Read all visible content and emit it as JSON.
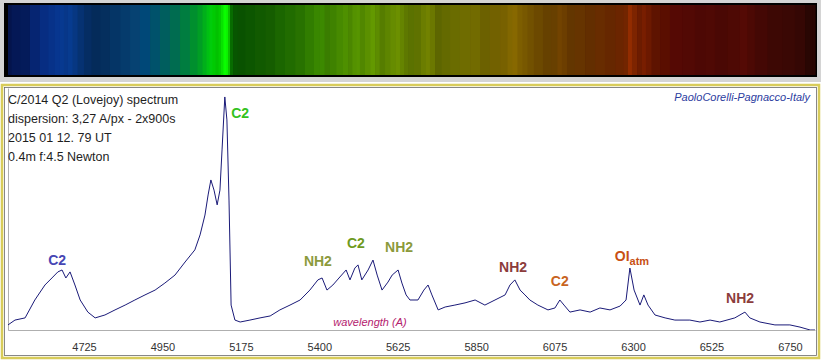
{
  "chart_data": {
    "type": "line",
    "title": "C/2014 Q2 (Lovejoy) spectrum",
    "subtitle": [
      "dispersion: 3,27 A/px - 2x900s",
      "2015 01 12. 79 UT",
      "0.4m f:4.5 Newton"
    ],
    "credit": "PaoloCorelli-Pagnacco-Italy",
    "xlabel": "wavelength (A)",
    "x": [
      4507,
      4527,
      4556,
      4584,
      4613,
      4633,
      4650,
      4662,
      4673,
      4685,
      4699,
      4714,
      4736,
      4757,
      4785,
      4814,
      4843,
      4871,
      4900,
      4929,
      4957,
      4986,
      5015,
      5043,
      5058,
      5072,
      5081,
      5089,
      5098,
      5107,
      5115,
      5121,
      5127,
      5129,
      5135,
      5141,
      5147,
      5158,
      5173,
      5201,
      5230,
      5259,
      5287,
      5316,
      5345,
      5373,
      5396,
      5408,
      5422,
      5439,
      5459,
      5477,
      5488,
      5502,
      5511,
      5522,
      5540,
      5554,
      5566,
      5580,
      5597,
      5609,
      5626,
      5637,
      5649,
      5660,
      5683,
      5700,
      5712,
      5723,
      5741,
      5761,
      5789,
      5818,
      5847,
      5875,
      5904,
      5933,
      5947,
      5961,
      5976,
      5990,
      6004,
      6027,
      6056,
      6076,
      6090,
      6102,
      6119,
      6148,
      6177,
      6205,
      6234,
      6263,
      6280,
      6291,
      6303,
      6320,
      6331,
      6343,
      6363,
      6392,
      6420,
      6463,
      6492,
      6521,
      6549,
      6592,
      6621,
      6635,
      6664,
      6707,
      6750,
      6779,
      6808,
      6822
    ],
    "values": [
      2.1,
      4.1,
      5.0,
      12.4,
      18.6,
      21.5,
      24.0,
      24.8,
      21.5,
      24.0,
      18.6,
      12.4,
      7.4,
      5.0,
      6.2,
      8.3,
      10.3,
      12.4,
      14.5,
      16.5,
      19.4,
      22.7,
      28.1,
      33.1,
      39.3,
      47.5,
      55.8,
      62.0,
      57.8,
      51.7,
      57.8,
      74.4,
      90.9,
      96.3,
      86.8,
      53.7,
      10.3,
      4.1,
      3.3,
      4.1,
      5.0,
      5.8,
      8.3,
      10.3,
      12.4,
      16.5,
      20.7,
      21.5,
      16.5,
      18.6,
      21.9,
      24.8,
      20.7,
      25.6,
      26.9,
      20.7,
      24.8,
      28.9,
      22.7,
      16.5,
      19.8,
      22.7,
      24.8,
      19.4,
      14.5,
      12.4,
      12.4,
      16.5,
      18.6,
      14.5,
      8.3,
      9.5,
      10.3,
      11.2,
      12.4,
      10.3,
      12.4,
      14.5,
      18.6,
      20.7,
      16.5,
      14.5,
      12.4,
      10.3,
      8.3,
      9.1,
      12.4,
      10.3,
      7.4,
      8.3,
      7.4,
      9.1,
      8.3,
      9.9,
      12.4,
      25.6,
      16.5,
      10.3,
      14.5,
      10.3,
      6.2,
      5.0,
      4.1,
      4.1,
      3.3,
      4.1,
      3.3,
      5.0,
      7.4,
      5.0,
      3.3,
      2.1,
      2.1,
      1.2,
      0,
      0
    ],
    "color": "#1a1a78",
    "xlim": [
      4507,
      6822
    ],
    "xticks": [
      4725,
      4950,
      5175,
      5400,
      5625,
      5850,
      6075,
      6300,
      6525,
      6750
    ],
    "ylim": [
      0,
      100
    ],
    "grid": false,
    "tick_labels": "x",
    "annotations": [
      {
        "text": "C2",
        "x": 4648,
        "y": 26.9,
        "color": "#4646b4"
      },
      {
        "text": "C2",
        "x": 5173,
        "y": 87.6,
        "color": "#33c21e"
      },
      {
        "text": "NH2",
        "x": 5396,
        "y": 26.4,
        "color": "#8c9a3c"
      },
      {
        "text": "C2",
        "x": 5505,
        "y": 33.9,
        "color": "#6e9a1e"
      },
      {
        "text": "NH2",
        "x": 5629,
        "y": 32.2,
        "color": "#8c9a3c"
      },
      {
        "text": "NH2",
        "x": 5956,
        "y": 24.0,
        "color": "#8c3c3c"
      },
      {
        "text": "C2",
        "x": 6090,
        "y": 18.2,
        "color": "#c8641e"
      },
      {
        "text": "OI",
        "sub": "atm",
        "x": 6297,
        "y": 28.5,
        "color": "#c85014"
      },
      {
        "text": "NH2",
        "x": 6607,
        "y": 11.2,
        "color": "#8c3c3c"
      }
    ]
  }
}
